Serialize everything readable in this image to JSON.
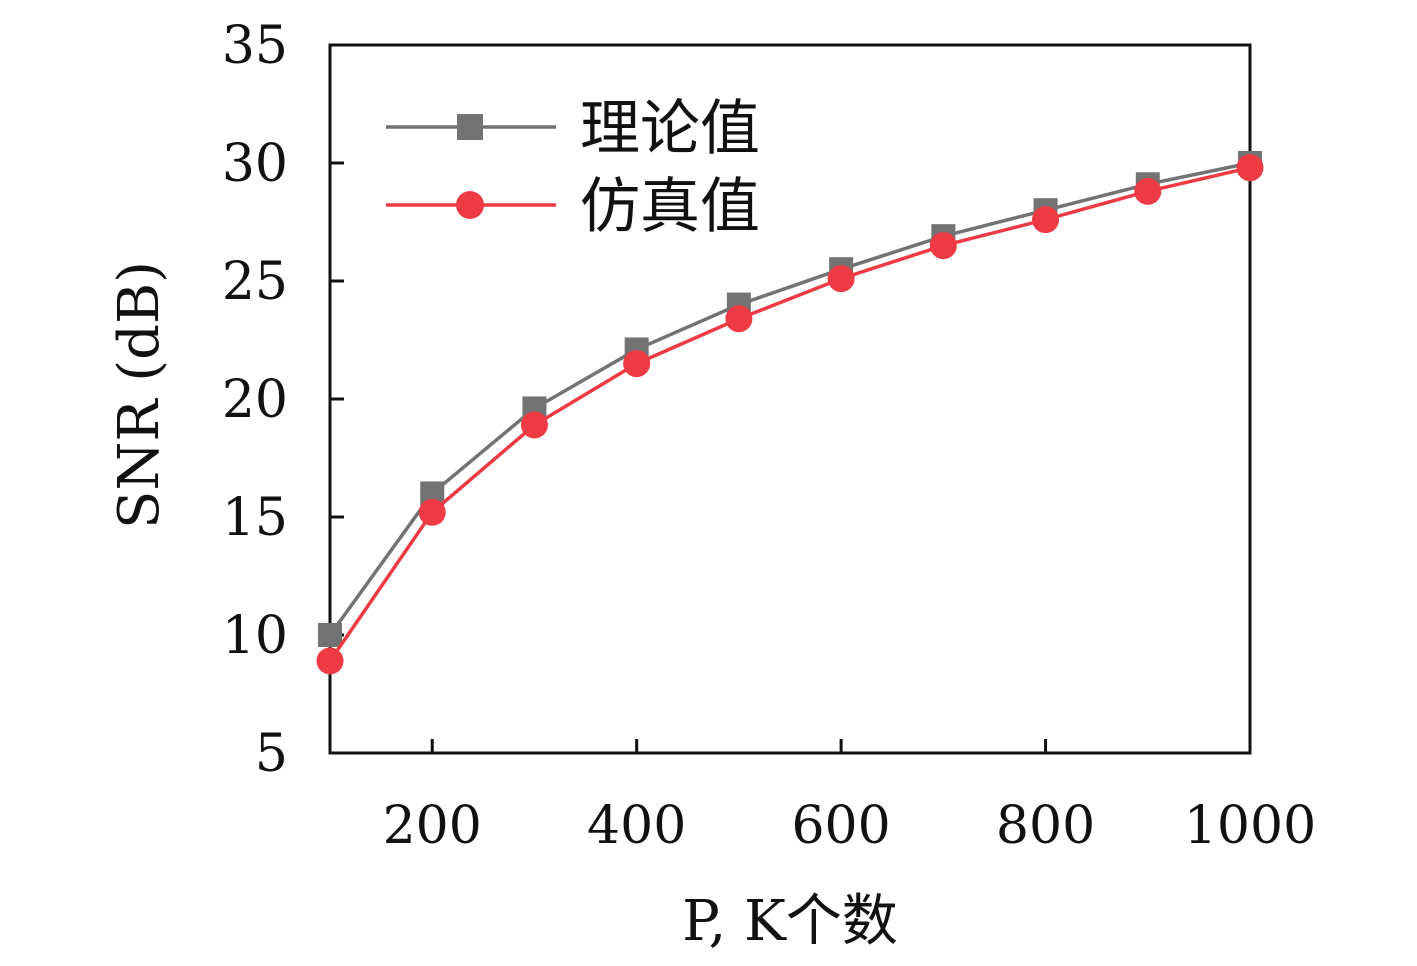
{
  "chart_data": {
    "type": "line",
    "xlabel": "P, K个数",
    "ylabel": "SNR (dB)",
    "xlim": [
      100,
      1000
    ],
    "ylim": [
      5,
      35
    ],
    "x_ticks": [
      200,
      400,
      600,
      800,
      1000
    ],
    "y_ticks": [
      5,
      10,
      15,
      20,
      25,
      30,
      35
    ],
    "x": [
      100,
      200,
      300,
      400,
      500,
      600,
      700,
      800,
      900,
      1000
    ],
    "series": [
      {
        "name": "理论值",
        "marker": "square",
        "color": "#737373",
        "values": [
          10.0,
          16.0,
          19.6,
          22.1,
          24.0,
          25.5,
          26.9,
          28.0,
          29.1,
          30.0
        ]
      },
      {
        "name": "仿真值",
        "marker": "circle",
        "color": "#ee3a43",
        "values": [
          8.9,
          15.2,
          18.9,
          21.5,
          23.4,
          25.1,
          26.5,
          27.6,
          28.8,
          29.8
        ]
      }
    ],
    "legend_position": "top-left",
    "grid": false
  }
}
